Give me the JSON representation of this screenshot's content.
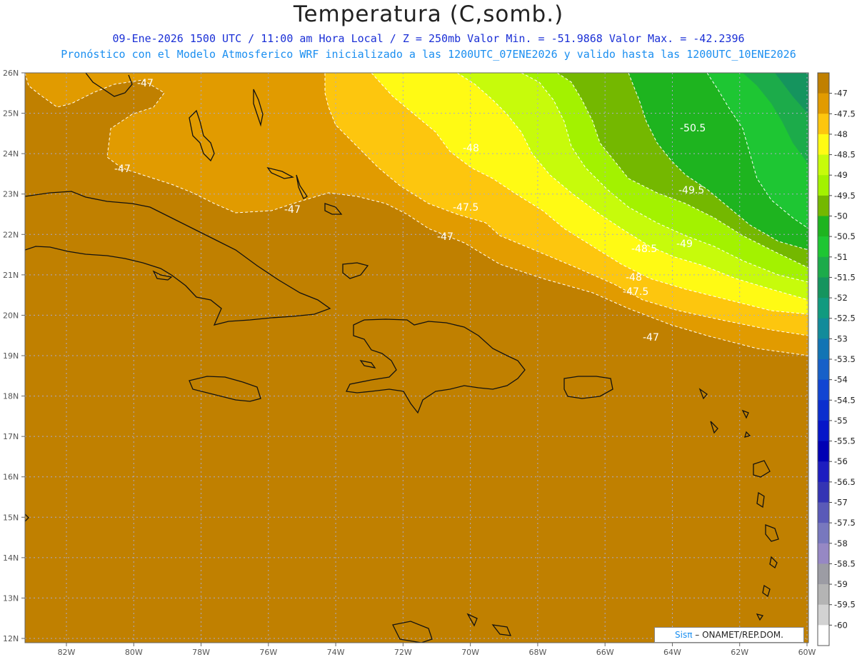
{
  "header": {
    "title": "Temperatura (C,somb.)",
    "line1": "09-Ene-2026  1500 UTC / 11:00 am Hora Local / Z = 250mb  Valor Min. = -51.9868  Valor Max. = -42.2396",
    "line2": "Pronóstico con el Modelo Atmosferico WRF inicializado a las 1200UTC_07ENE2026 y valido hasta las  1200UTC_10ENE2026"
  },
  "map": {
    "lat_labels": [
      "26N",
      "25N",
      "24N",
      "23N",
      "22N",
      "21N",
      "20N",
      "19N",
      "18N",
      "17N",
      "16N",
      "15N",
      "14N",
      "13N",
      "12N"
    ],
    "lon_labels": [
      "82W",
      "80W",
      "78W",
      "76W",
      "74W",
      "72W",
      "70W",
      "68W",
      "66W",
      "64W",
      "62W",
      "60W"
    ],
    "contour_labels": [
      {
        "text": "-47",
        "id": "c1"
      },
      {
        "text": "-47",
        "id": "c2"
      },
      {
        "text": "-47",
        "id": "c3"
      },
      {
        "text": "-47.5",
        "id": "c4"
      },
      {
        "text": "-47",
        "id": "c5"
      },
      {
        "text": "-48",
        "id": "c6"
      },
      {
        "text": "-50.5",
        "id": "c7"
      },
      {
        "text": "-49.5",
        "id": "c8"
      },
      {
        "text": "-48.5",
        "id": "c9"
      },
      {
        "text": "-49",
        "id": "c10"
      },
      {
        "text": "-48",
        "id": "c11"
      },
      {
        "text": "-47.5",
        "id": "c12"
      },
      {
        "text": "-47",
        "id": "c13"
      }
    ]
  },
  "colorbar": {
    "labels": [
      "-47",
      "-47.5",
      "-48",
      "-48.5",
      "-49",
      "-49.5",
      "-50",
      "-50.5",
      "-51",
      "-51.5",
      "-52",
      "-52.5",
      "-53",
      "-53.5",
      "-54",
      "-54.5",
      "-55",
      "-55.5",
      "-56",
      "-56.5",
      "-57",
      "-57.5",
      "-58",
      "-58.5",
      "-59",
      "-59.5",
      "-60"
    ],
    "colors": [
      "#c08000",
      "#e19b00",
      "#fdc60e",
      "#fffa14",
      "#c7fb0b",
      "#a3f200",
      "#74b800",
      "#1eb41f",
      "#1ec633",
      "#1cab4a",
      "#15945e",
      "#119a7f",
      "#128b9a",
      "#1174b4",
      "#1760c8",
      "#1145d2",
      "#0b2ece",
      "#0616c8",
      "#0000b4",
      "#1d1dc0",
      "#3434b4",
      "#5a5ab8",
      "#7878be",
      "#9688c4",
      "#9c9ca4",
      "#b4b4b4",
      "#d2d2d2",
      "#ffffff"
    ]
  },
  "credit": {
    "sis": "Sis",
    "pi": "π",
    "rest": " – ONAMET/REP.DOM."
  }
}
